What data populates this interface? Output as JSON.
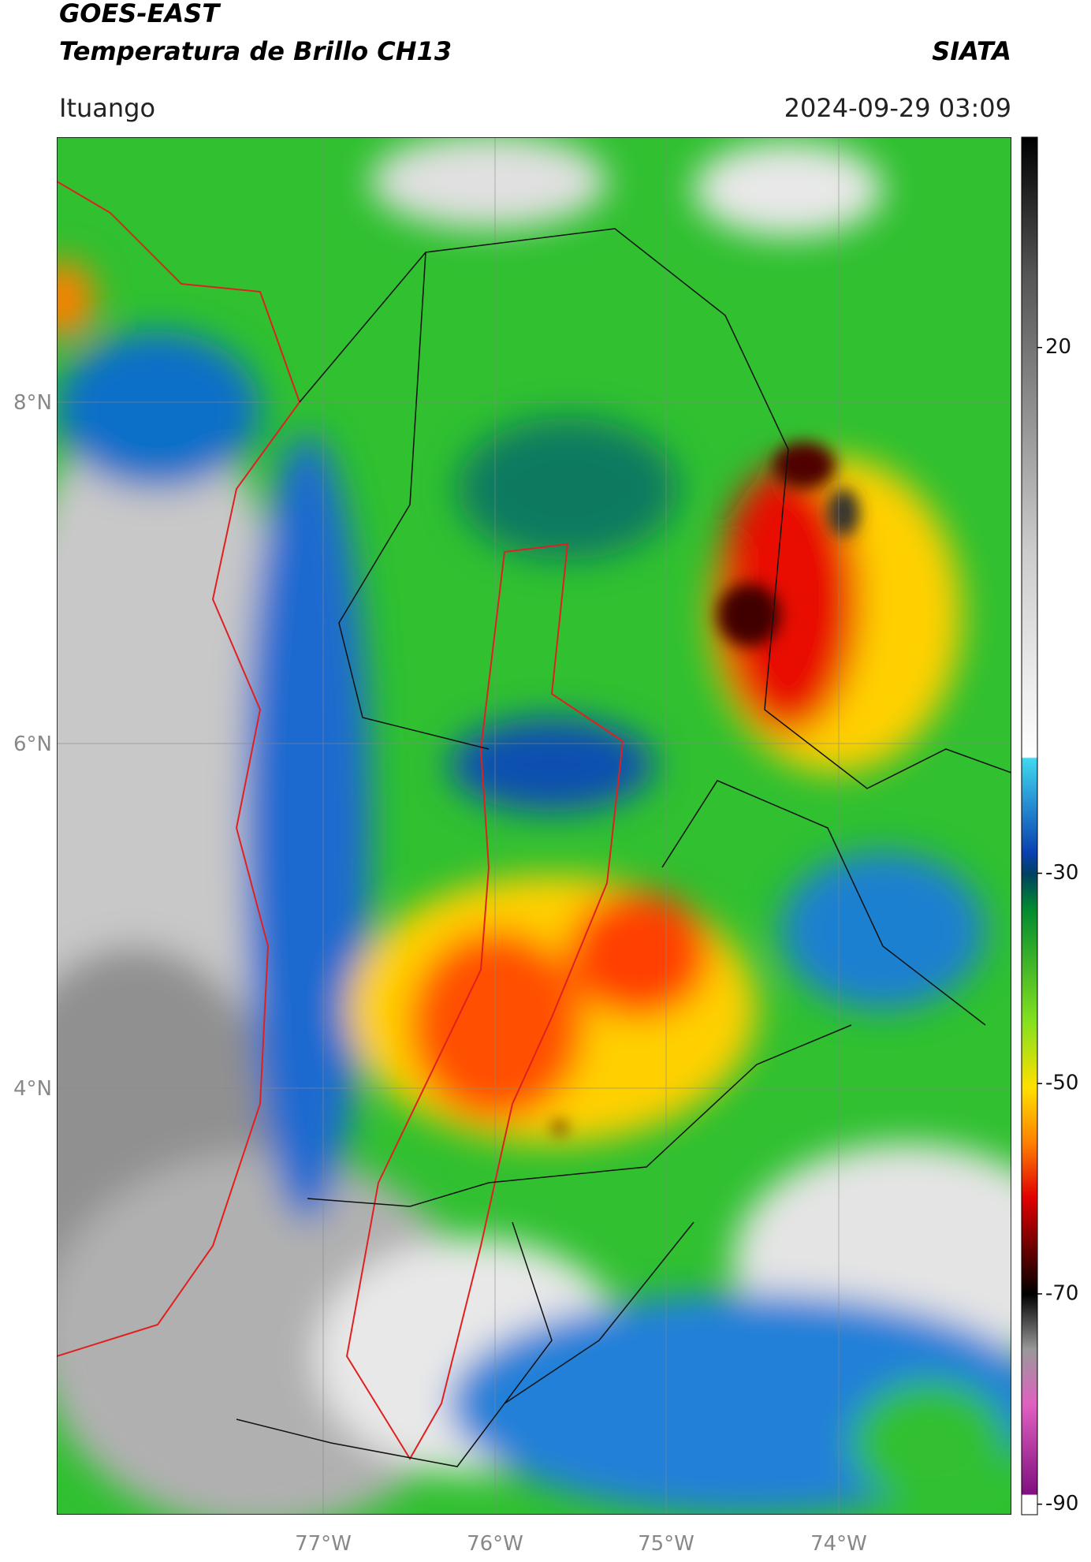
{
  "header": {
    "title": "GOES-EAST",
    "subtitle": "Temperatura de Brillo CH13",
    "agency": "SIATA",
    "location": "Ituango",
    "datetime": "2024-09-29 03:09"
  },
  "map": {
    "lat_labels": [
      "8°N",
      "6°N",
      "4°N"
    ],
    "lon_labels": [
      "77°W",
      "76°W",
      "75°W",
      "74°W"
    ]
  },
  "colorbar": {
    "range": [
      -91,
      40
    ],
    "ticks": [
      20,
      -30,
      -50,
      -70,
      -90
    ]
  }
}
